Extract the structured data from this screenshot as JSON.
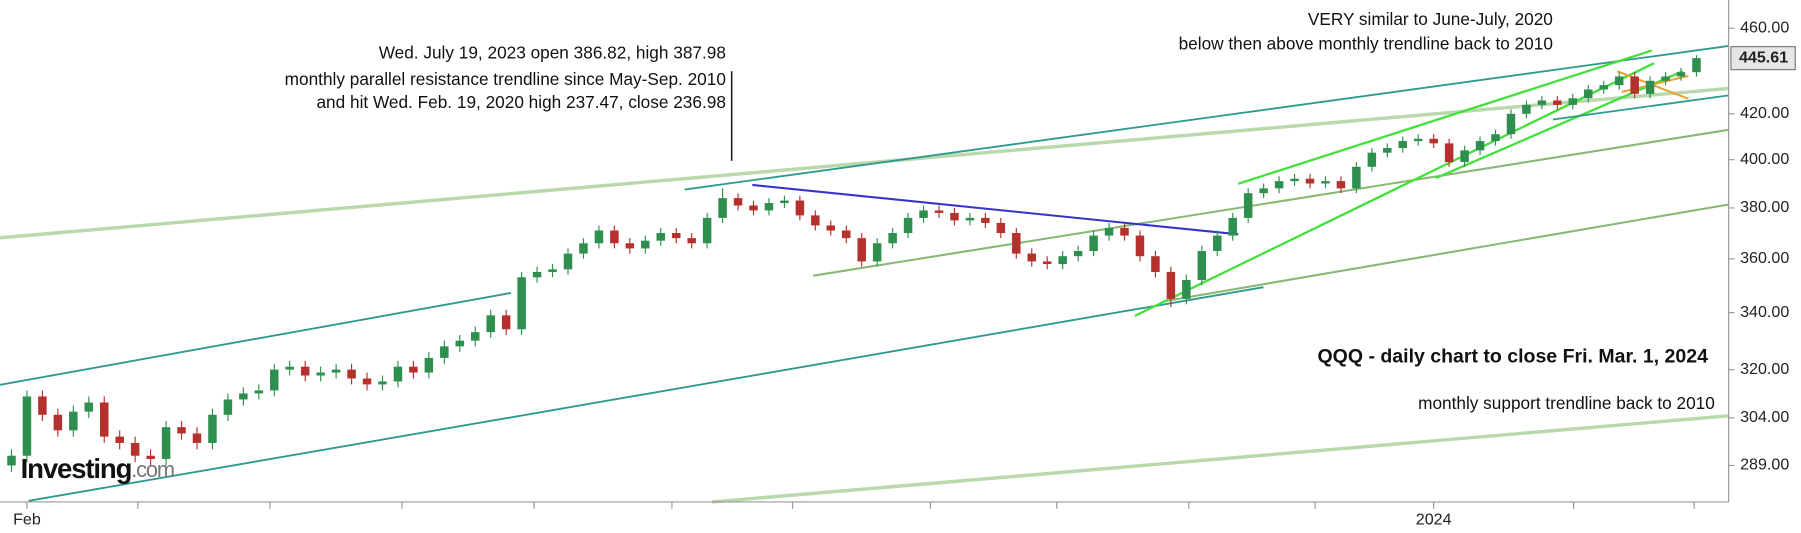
{
  "chart_data": {
    "type": "candlestick",
    "log_y": true,
    "up_color": "#2f8f4e",
    "down_color": "#b6312e",
    "ylim": [
      278,
      474
    ],
    "yticks": [
      {
        "value": 460,
        "label": "460.00"
      },
      {
        "value": 420,
        "label": "420.00"
      },
      {
        "value": 400,
        "label": "400.00"
      },
      {
        "value": 380,
        "label": "380.00"
      },
      {
        "value": 360,
        "label": "360.00"
      },
      {
        "value": 340,
        "label": "340.00"
      },
      {
        "value": 320,
        "label": "320.00"
      },
      {
        "value": 304,
        "label": "304.00"
      },
      {
        "value": 289,
        "label": "289.00"
      }
    ],
    "categories": [
      null,
      "Feb",
      null,
      null,
      null,
      null,
      null,
      null,
      null,
      null,
      null,
      null,
      null,
      null,
      null,
      null,
      null,
      null,
      null,
      null,
      null,
      null,
      null,
      null,
      null,
      null,
      null,
      null,
      null,
      null,
      null,
      null,
      null,
      null,
      null,
      null,
      null,
      null,
      null,
      null,
      null,
      null,
      null,
      null,
      null,
      null,
      null,
      null,
      null,
      null,
      null,
      null,
      null,
      null,
      null,
      null,
      null,
      null,
      null,
      null,
      null,
      null,
      null,
      null,
      null,
      null,
      null,
      null,
      null,
      null,
      null,
      null,
      null,
      null,
      null,
      null,
      null,
      null,
      null,
      null,
      null,
      null,
      null,
      null,
      null,
      null,
      null,
      null,
      null,
      null,
      null,
      null,
      "2024",
      null,
      null,
      null,
      null,
      null,
      null,
      null,
      null,
      null,
      null,
      null,
      null,
      null,
      null,
      null,
      null,
      null
    ],
    "open": [
      289,
      292,
      311,
      305,
      300,
      306,
      309,
      298,
      296,
      292,
      291,
      301,
      299,
      296,
      305,
      310,
      312,
      313,
      320,
      321,
      318,
      319,
      320,
      317,
      315,
      316,
      321,
      319,
      324,
      328,
      330,
      333,
      339,
      334,
      353,
      355,
      356,
      362,
      366,
      371,
      366,
      364,
      367,
      370,
      368,
      366,
      376,
      384,
      381,
      379,
      382,
      383,
      377,
      373,
      371,
      368,
      359,
      366,
      370,
      376,
      379,
      378,
      375,
      376,
      374,
      370,
      362,
      359,
      358,
      361,
      363,
      369,
      372,
      369,
      361,
      355,
      345,
      352,
      363,
      369,
      376,
      386,
      388,
      391,
      392,
      390,
      391,
      388,
      397,
      403,
      405,
      408,
      409,
      407,
      399,
      404,
      408,
      411,
      420,
      424,
      426,
      424,
      427,
      431,
      433,
      437,
      429,
      435,
      437,
      439
    ],
    "high": [
      294,
      313,
      313,
      307,
      308,
      311,
      311,
      300,
      298,
      294,
      303,
      303,
      301,
      307,
      312,
      314,
      315,
      322,
      323,
      323,
      321,
      322,
      322,
      319,
      318,
      323,
      323,
      326,
      330,
      332,
      335,
      341,
      341,
      355,
      357,
      358,
      364,
      368,
      373,
      373,
      368,
      369,
      372,
      372,
      370,
      378,
      388,
      386,
      383,
      384,
      385,
      385,
      379,
      375,
      373,
      370,
      368,
      372,
      378,
      381,
      381,
      380,
      378,
      378,
      376,
      372,
      364,
      361,
      363,
      365,
      371,
      374,
      374,
      371,
      363,
      357,
      354,
      365,
      371,
      378,
      388,
      390,
      393,
      394,
      394,
      393,
      393,
      399,
      405,
      407,
      410,
      411,
      411,
      409,
      406,
      410,
      413,
      422,
      426,
      428,
      428,
      429,
      433,
      435,
      439,
      439,
      437,
      439,
      441,
      447
    ],
    "low": [
      287,
      290,
      303,
      298,
      298,
      304,
      296,
      294,
      290,
      289,
      289,
      297,
      294,
      294,
      303,
      308,
      310,
      311,
      318,
      316,
      316,
      317,
      315,
      313,
      313,
      314,
      317,
      317,
      322,
      326,
      328,
      331,
      332,
      332,
      351,
      353,
      354,
      360,
      364,
      364,
      362,
      362,
      365,
      366,
      364,
      364,
      374,
      379,
      377,
      377,
      380,
      375,
      371,
      369,
      366,
      357,
      357,
      364,
      368,
      374,
      376,
      373,
      373,
      372,
      368,
      360,
      357,
      356,
      356,
      359,
      361,
      367,
      367,
      359,
      353,
      342,
      343,
      350,
      361,
      367,
      374,
      384,
      386,
      389,
      388,
      388,
      386,
      386,
      395,
      401,
      403,
      406,
      405,
      397,
      397,
      402,
      406,
      409,
      418,
      422,
      422,
      422,
      425,
      429,
      431,
      427,
      427,
      433,
      435,
      437
    ],
    "close": [
      292,
      311,
      305,
      300,
      306,
      309,
      298,
      296,
      292,
      291,
      301,
      299,
      296,
      305,
      310,
      312,
      313,
      320,
      321,
      318,
      319,
      320,
      317,
      315,
      316,
      321,
      319,
      324,
      328,
      330,
      333,
      339,
      334,
      353,
      355,
      356,
      362,
      366,
      371,
      366,
      364,
      367,
      370,
      368,
      366,
      376,
      384,
      381,
      379,
      382,
      383,
      377,
      373,
      371,
      368,
      359,
      366,
      370,
      376,
      379,
      378,
      375,
      376,
      374,
      370,
      362,
      359,
      358,
      361,
      363,
      369,
      372,
      369,
      361,
      355,
      345,
      352,
      363,
      369,
      376,
      386,
      388,
      391,
      392,
      390,
      391,
      388,
      397,
      403,
      405,
      408,
      409,
      407,
      399,
      404,
      408,
      411,
      420,
      424,
      426,
      424,
      427,
      431,
      433,
      437,
      429,
      435,
      437,
      439,
      445.61
    ],
    "annotations": [
      "Wed. July 19, 2023 open 386.82, high 387.98",
      "monthly parallel resistance trendline since May-Sep. 2010",
      "and hit Wed. Feb. 19, 2020 high 237.47, close 236.98",
      "VERY similar to June-July, 2020",
      "below then above monthly trendline back to 2010",
      "QQQ - daily chart to close Fri. Mar. 1, 2024",
      "monthly support trendline back to 2010"
    ],
    "watermark": {
      "brand": "Investing",
      "suffix": ".com"
    }
  }
}
